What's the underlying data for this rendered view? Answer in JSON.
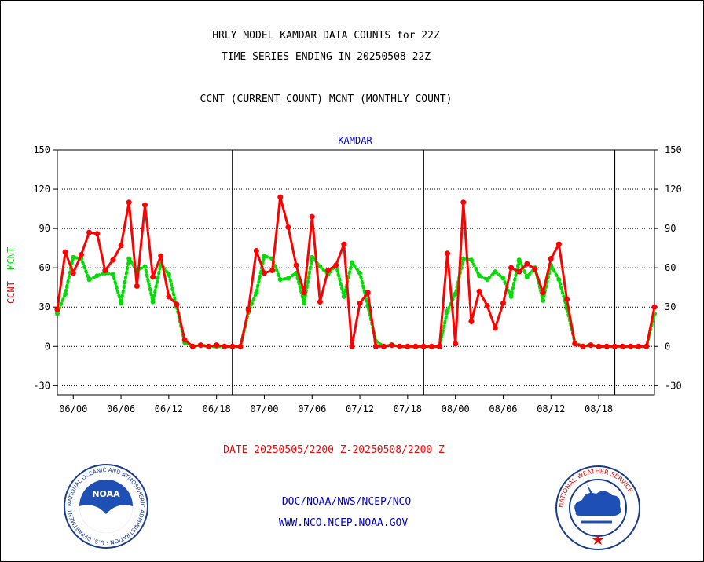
{
  "header": {
    "title_line1": "HRLY MODEL KAMDAR DATA COUNTS for 22Z",
    "title_line2": "TIME SERIES ENDING IN 20250508 22Z",
    "title_line3": "CCNT (CURRENT COUNT) MCNT (MONTHLY COUNT)"
  },
  "footer": {
    "date_range": "DATE 20250505/2200 Z-20250508/2200 Z",
    "org": "DOC/NOAA/NWS/NCEP/NCO",
    "url": "WWW.NCO.NCEP.NOAA.GOV"
  },
  "logos": {
    "noaa": {
      "text": "NOAA",
      "ring_text": "NATIONAL OCEANIC AND ATMOSPHERIC ADMINISTRATION · U.S. DEPARTMENT OF COMMERCE"
    },
    "nws": {
      "ring_text": "NATIONAL WEATHER SERVICE"
    }
  },
  "colors": {
    "ccnt": "#ff0000",
    "mcnt": "#00dd00",
    "blue": "#0000cc",
    "grid": "#000000"
  },
  "chart_data": {
    "type": "line",
    "title": "KAMDAR",
    "ylabel_parts": [
      "CCNT",
      "MCNT"
    ],
    "ylim": [
      -37,
      150
    ],
    "yticks": [
      -30,
      0,
      30,
      60,
      90,
      120,
      150
    ],
    "xlim": [
      -2,
      73
    ],
    "xticks": [
      {
        "x": 0,
        "label": "06/00"
      },
      {
        "x": 6,
        "label": "06/06"
      },
      {
        "x": 12,
        "label": "06/12"
      },
      {
        "x": 18,
        "label": "06/18"
      },
      {
        "x": 24,
        "label": "07/00"
      },
      {
        "x": 30,
        "label": "07/06"
      },
      {
        "x": 36,
        "label": "07/12"
      },
      {
        "x": 42,
        "label": "07/18"
      },
      {
        "x": 48,
        "label": "08/00"
      },
      {
        "x": 54,
        "label": "08/06"
      },
      {
        "x": 60,
        "label": "08/12"
      },
      {
        "x": 66,
        "label": "08/18"
      }
    ],
    "day_boundaries": [
      20,
      44,
      68
    ],
    "x": [
      -2,
      -1,
      0,
      1,
      2,
      3,
      4,
      5,
      6,
      7,
      8,
      9,
      10,
      11,
      12,
      13,
      14,
      15,
      16,
      17,
      18,
      19,
      20,
      21,
      22,
      23,
      24,
      25,
      26,
      27,
      28,
      29,
      30,
      31,
      32,
      33,
      34,
      35,
      36,
      37,
      38,
      39,
      40,
      41,
      42,
      43,
      44,
      45,
      46,
      47,
      48,
      49,
      50,
      51,
      52,
      53,
      54,
      55,
      56,
      57,
      58,
      59,
      60,
      61,
      62,
      63,
      64,
      65,
      66,
      67,
      68,
      69,
      70,
      71,
      72,
      73
    ],
    "series": [
      {
        "name": "CCNT",
        "style": "solid",
        "values": [
          28,
          72,
          56,
          70,
          87,
          86,
          58,
          66,
          77,
          110,
          46,
          108,
          53,
          69,
          38,
          32,
          5,
          0,
          1,
          0,
          1,
          0,
          0,
          0,
          28,
          73,
          56,
          58,
          114,
          91,
          62,
          41,
          99,
          34,
          58,
          62,
          78,
          0,
          33,
          41,
          0,
          0,
          1,
          0,
          0,
          0,
          0,
          0,
          0,
          71,
          2,
          110,
          19,
          42,
          31,
          14,
          33,
          60,
          57,
          63,
          59,
          41,
          67,
          78,
          36,
          2,
          0,
          1,
          0,
          0,
          0,
          0,
          0,
          0,
          0,
          30
        ]
      },
      {
        "name": "MCNT",
        "style": "dotted",
        "values": [
          25,
          40,
          68,
          67,
          51,
          54,
          56,
          55,
          33,
          67,
          58,
          61,
          34,
          63,
          55,
          30,
          3,
          0,
          1,
          0,
          0,
          0,
          0,
          0,
          26,
          41,
          69,
          67,
          51,
          52,
          56,
          33,
          68,
          61,
          55,
          62,
          38,
          64,
          56,
          31,
          4,
          0,
          1,
          0,
          0,
          0,
          0,
          0,
          0,
          27,
          40,
          67,
          66,
          54,
          51,
          57,
          52,
          38,
          66,
          53,
          60,
          35,
          62,
          51,
          29,
          3,
          0,
          1,
          0,
          0,
          0,
          0,
          0,
          0,
          0,
          25
        ]
      }
    ]
  }
}
